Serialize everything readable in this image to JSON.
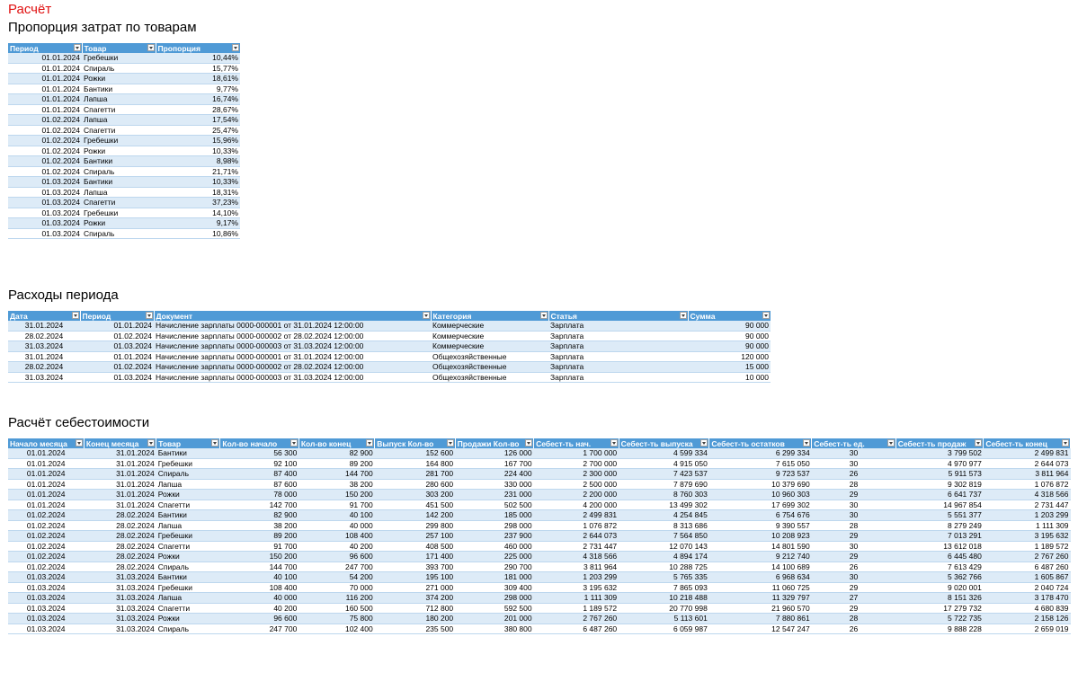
{
  "page": {
    "title": "Расчёт"
  },
  "proportions": {
    "title": "Пропорция затрат по товарам",
    "headers": [
      "Период",
      "Товар",
      "Пропорция"
    ],
    "rows": [
      [
        "01.01.2024",
        "Гребешки",
        "10,44%"
      ],
      [
        "01.01.2024",
        "Спираль",
        "15,77%"
      ],
      [
        "01.01.2024",
        "Рожки",
        "18,61%"
      ],
      [
        "01.01.2024",
        "Бантики",
        "9,77%"
      ],
      [
        "01.01.2024",
        "Лапша",
        "16,74%"
      ],
      [
        "01.01.2024",
        "Спагетти",
        "28,67%"
      ],
      [
        "01.02.2024",
        "Лапша",
        "17,54%"
      ],
      [
        "01.02.2024",
        "Спагетти",
        "25,47%"
      ],
      [
        "01.02.2024",
        "Гребешки",
        "15,96%"
      ],
      [
        "01.02.2024",
        "Рожки",
        "10,33%"
      ],
      [
        "01.02.2024",
        "Бантики",
        "8,98%"
      ],
      [
        "01.02.2024",
        "Спираль",
        "21,71%"
      ],
      [
        "01.03.2024",
        "Бантики",
        "10,33%"
      ],
      [
        "01.03.2024",
        "Лапша",
        "18,31%"
      ],
      [
        "01.03.2024",
        "Спагетти",
        "37,23%"
      ],
      [
        "01.03.2024",
        "Гребешки",
        "14,10%"
      ],
      [
        "01.03.2024",
        "Рожки",
        "9,17%"
      ],
      [
        "01.03.2024",
        "Спираль",
        "10,86%"
      ]
    ]
  },
  "expenses": {
    "title": "Расходы периода",
    "headers": [
      "Дата",
      "Период",
      "Документ",
      "Категория",
      "Статья",
      "Сумма"
    ],
    "rows": [
      [
        "31.01.2024",
        "01.01.2024",
        "Начисление зарплаты 0000-000001 от 31.01.2024 12:00:00",
        "Коммерческие",
        "Зарплата",
        "90 000"
      ],
      [
        "28.02.2024",
        "01.02.2024",
        "Начисление зарплаты 0000-000002 от 28.02.2024 12:00:00",
        "Коммерческие",
        "Зарплата",
        "90 000"
      ],
      [
        "31.03.2024",
        "01.03.2024",
        "Начисление зарплаты 0000-000003 от 31.03.2024 12:00:00",
        "Коммерческие",
        "Зарплата",
        "90 000"
      ],
      [
        "31.01.2024",
        "01.01.2024",
        "Начисление зарплаты 0000-000001 от 31.01.2024 12:00:00",
        "Общехозяйственные",
        "Зарплата",
        "120 000"
      ],
      [
        "28.02.2024",
        "01.02.2024",
        "Начисление зарплаты 0000-000002 от 28.02.2024 12:00:00",
        "Общехозяйственные",
        "Зарплата",
        "15 000"
      ],
      [
        "31.03.2024",
        "01.03.2024",
        "Начисление зарплаты 0000-000003 от 31.03.2024 12:00:00",
        "Общехозяйственные",
        "Зарплата",
        "10 000"
      ]
    ]
  },
  "cost": {
    "title": "Расчёт себестоимости",
    "headers": [
      "Начало месяца",
      "Конец месяца",
      "Товар",
      "Кол-во начало",
      "Кол-во конец",
      "Выпуск Кол-во",
      "Продажи Кол-во",
      "Себест-ть нач.",
      "Себест-ть выпуска",
      "Себест-ть остатков",
      "Себест-ть ед.",
      "Себест-ть продаж",
      "Себест-ть конец"
    ],
    "rows": [
      [
        "01.01.2024",
        "31.01.2024",
        "Бантики",
        "56 300",
        "82 900",
        "152 600",
        "126 000",
        "1 700 000",
        "4 599 334",
        "6 299 334",
        "30",
        "3 799 502",
        "2 499 831"
      ],
      [
        "01.01.2024",
        "31.01.2024",
        "Гребешки",
        "92 100",
        "89 200",
        "164 800",
        "167 700",
        "2 700 000",
        "4 915 050",
        "7 615 050",
        "30",
        "4 970 977",
        "2 644 073"
      ],
      [
        "01.01.2024",
        "31.01.2024",
        "Спираль",
        "87 400",
        "144 700",
        "281 700",
        "224 400",
        "2 300 000",
        "7 423 537",
        "9 723 537",
        "26",
        "5 911 573",
        "3 811 964"
      ],
      [
        "01.01.2024",
        "31.01.2024",
        "Лапша",
        "87 600",
        "38 200",
        "280 600",
        "330 000",
        "2 500 000",
        "7 879 690",
        "10 379 690",
        "28",
        "9 302 819",
        "1 076 872"
      ],
      [
        "01.01.2024",
        "31.01.2024",
        "Рожки",
        "78 000",
        "150 200",
        "303 200",
        "231 000",
        "2 200 000",
        "8 760 303",
        "10 960 303",
        "29",
        "6 641 737",
        "4 318 566"
      ],
      [
        "01.01.2024",
        "31.01.2024",
        "Спагетти",
        "142 700",
        "91 700",
        "451 500",
        "502 500",
        "4 200 000",
        "13 499 302",
        "17 699 302",
        "30",
        "14 967 854",
        "2 731 447"
      ],
      [
        "01.02.2024",
        "28.02.2024",
        "Бантики",
        "82 900",
        "40 100",
        "142 200",
        "185 000",
        "2 499 831",
        "4 254 845",
        "6 754 676",
        "30",
        "5 551 377",
        "1 203 299"
      ],
      [
        "01.02.2024",
        "28.02.2024",
        "Лапша",
        "38 200",
        "40 000",
        "299 800",
        "298 000",
        "1 076 872",
        "8 313 686",
        "9 390 557",
        "28",
        "8 279 249",
        "1 111 309"
      ],
      [
        "01.02.2024",
        "28.02.2024",
        "Гребешки",
        "89 200",
        "108 400",
        "257 100",
        "237 900",
        "2 644 073",
        "7 564 850",
        "10 208 923",
        "29",
        "7 013 291",
        "3 195 632"
      ],
      [
        "01.02.2024",
        "28.02.2024",
        "Спагетти",
        "91 700",
        "40 200",
        "408 500",
        "460 000",
        "2 731 447",
        "12 070 143",
        "14 801 590",
        "30",
        "13 612 018",
        "1 189 572"
      ],
      [
        "01.02.2024",
        "28.02.2024",
        "Рожки",
        "150 200",
        "96 600",
        "171 400",
        "225 000",
        "4 318 566",
        "4 894 174",
        "9 212 740",
        "29",
        "6 445 480",
        "2 767 260"
      ],
      [
        "01.02.2024",
        "28.02.2024",
        "Спираль",
        "144 700",
        "247 700",
        "393 700",
        "290 700",
        "3 811 964",
        "10 288 725",
        "14 100 689",
        "26",
        "7 613 429",
        "6 487 260"
      ],
      [
        "01.03.2024",
        "31.03.2024",
        "Бантики",
        "40 100",
        "54 200",
        "195 100",
        "181 000",
        "1 203 299",
        "5 765 335",
        "6 968 634",
        "30",
        "5 362 766",
        "1 605 867"
      ],
      [
        "01.03.2024",
        "31.03.2024",
        "Гребешки",
        "108 400",
        "70 000",
        "271 000",
        "309 400",
        "3 195 632",
        "7 865 093",
        "11 060 725",
        "29",
        "9 020 001",
        "2 040 724"
      ],
      [
        "01.03.2024",
        "31.03.2024",
        "Лапша",
        "40 000",
        "116 200",
        "374 200",
        "298 000",
        "1 111 309",
        "10 218 488",
        "11 329 797",
        "27",
        "8 151 326",
        "3 178 470"
      ],
      [
        "01.03.2024",
        "31.03.2024",
        "Спагетти",
        "40 200",
        "160 500",
        "712 800",
        "592 500",
        "1 189 572",
        "20 770 998",
        "21 960 570",
        "29",
        "17 279 732",
        "4 680 839"
      ],
      [
        "01.03.2024",
        "31.03.2024",
        "Рожки",
        "96 600",
        "75 800",
        "180 200",
        "201 000",
        "2 767 260",
        "5 113 601",
        "7 880 861",
        "28",
        "5 722 735",
        "2 158 126"
      ],
      [
        "01.03.2024",
        "31.03.2024",
        "Спираль",
        "247 700",
        "102 400",
        "235 500",
        "380 800",
        "6 487 260",
        "6 059 987",
        "12 547 247",
        "26",
        "9 888 228",
        "2 659 019"
      ]
    ]
  }
}
